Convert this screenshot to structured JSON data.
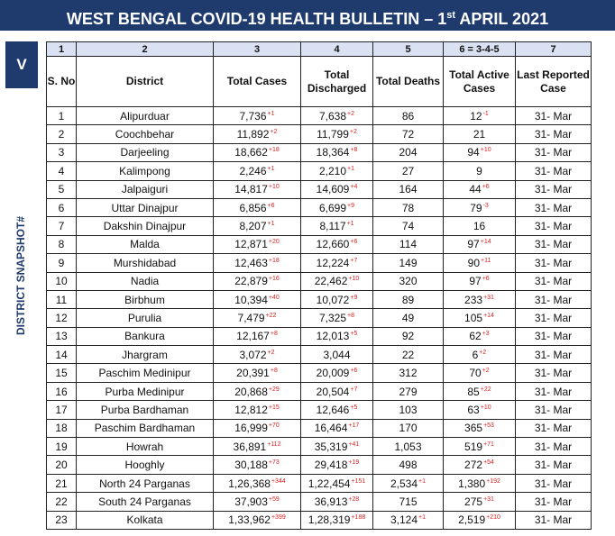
{
  "title": {
    "main": "WEST BENGAL COVID-19 HEALTH BULLETIN – 1",
    "ordinal": "st",
    "rest": " APRIL 2021"
  },
  "section": {
    "marker": "V",
    "label": "DISTRICT SNAPSHOT#"
  },
  "table": {
    "col_numbers": [
      "1",
      "2",
      "3",
      "4",
      "5",
      "6 = 3-4-5",
      "7"
    ],
    "headers": [
      "S. No",
      "District",
      "Total Cases",
      "Total Discharged",
      "Total Deaths",
      "Total Active Cases",
      "Last Reported Case"
    ],
    "rows": [
      {
        "sno": "1",
        "district": "Alipurduar",
        "cases": "7,736",
        "cases_delta": "+1",
        "discharged": "7,638",
        "discharged_delta": "+2",
        "deaths": "86",
        "deaths_delta": "",
        "active": "12",
        "active_delta": "-1",
        "last": "31- Mar"
      },
      {
        "sno": "2",
        "district": "Coochbehar",
        "cases": "11,892",
        "cases_delta": "+2",
        "discharged": "11,799",
        "discharged_delta": "+2",
        "deaths": "72",
        "deaths_delta": "",
        "active": "21",
        "active_delta": "",
        "last": "31- Mar"
      },
      {
        "sno": "3",
        "district": "Darjeeling",
        "cases": "18,662",
        "cases_delta": "+18",
        "discharged": "18,364",
        "discharged_delta": "+8",
        "deaths": "204",
        "deaths_delta": "",
        "active": "94",
        "active_delta": "+10",
        "last": "31- Mar"
      },
      {
        "sno": "4",
        "district": "Kalimpong",
        "cases": "2,246",
        "cases_delta": "+1",
        "discharged": "2,210",
        "discharged_delta": "+1",
        "deaths": "27",
        "deaths_delta": "",
        "active": "9",
        "active_delta": "",
        "last": "31- Mar"
      },
      {
        "sno": "5",
        "district": "Jalpaiguri",
        "cases": "14,817",
        "cases_delta": "+10",
        "discharged": "14,609",
        "discharged_delta": "+4",
        "deaths": "164",
        "deaths_delta": "",
        "active": "44",
        "active_delta": "+6",
        "last": "31- Mar"
      },
      {
        "sno": "6",
        "district": "Uttar Dinajpur",
        "cases": "6,856",
        "cases_delta": "+6",
        "discharged": "6,699",
        "discharged_delta": "+9",
        "deaths": "78",
        "deaths_delta": "",
        "active": "79",
        "active_delta": "-3",
        "last": "31- Mar"
      },
      {
        "sno": "7",
        "district": "Dakshin Dinajpur",
        "cases": "8,207",
        "cases_delta": "+1",
        "discharged": "8,117",
        "discharged_delta": "+1",
        "deaths": "74",
        "deaths_delta": "",
        "active": "16",
        "active_delta": "",
        "last": "31- Mar"
      },
      {
        "sno": "8",
        "district": "Malda",
        "cases": "12,871",
        "cases_delta": "+20",
        "discharged": "12,660",
        "discharged_delta": "+6",
        "deaths": "114",
        "deaths_delta": "",
        "active": "97",
        "active_delta": "+14",
        "last": "31- Mar"
      },
      {
        "sno": "9",
        "district": "Murshidabad",
        "cases": "12,463",
        "cases_delta": "+18",
        "discharged": "12,224",
        "discharged_delta": "+7",
        "deaths": "149",
        "deaths_delta": "",
        "active": "90",
        "active_delta": "+11",
        "last": "31- Mar"
      },
      {
        "sno": "10",
        "district": "Nadia",
        "cases": "22,879",
        "cases_delta": "+16",
        "discharged": "22,462",
        "discharged_delta": "+10",
        "deaths": "320",
        "deaths_delta": "",
        "active": "97",
        "active_delta": "+6",
        "last": "31- Mar"
      },
      {
        "sno": "11",
        "district": "Birbhum",
        "cases": "10,394",
        "cases_delta": "+40",
        "discharged": "10,072",
        "discharged_delta": "+9",
        "deaths": "89",
        "deaths_delta": "",
        "active": "233",
        "active_delta": "+31",
        "last": "31- Mar"
      },
      {
        "sno": "12",
        "district": "Purulia",
        "cases": "7,479",
        "cases_delta": "+22",
        "discharged": "7,325",
        "discharged_delta": "+8",
        "deaths": "49",
        "deaths_delta": "",
        "active": "105",
        "active_delta": "+14",
        "last": "31- Mar"
      },
      {
        "sno": "13",
        "district": "Bankura",
        "cases": "12,167",
        "cases_delta": "+8",
        "discharged": "12,013",
        "discharged_delta": "+5",
        "deaths": "92",
        "deaths_delta": "",
        "active": "62",
        "active_delta": "+3",
        "last": "31- Mar"
      },
      {
        "sno": "14",
        "district": "Jhargram",
        "cases": "3,072",
        "cases_delta": "+2",
        "discharged": "3,044",
        "discharged_delta": "",
        "deaths": "22",
        "deaths_delta": "",
        "active": "6",
        "active_delta": "+2",
        "last": "31- Mar"
      },
      {
        "sno": "15",
        "district": "Paschim Medinipur",
        "cases": "20,391",
        "cases_delta": "+8",
        "discharged": "20,009",
        "discharged_delta": "+6",
        "deaths": "312",
        "deaths_delta": "",
        "active": "70",
        "active_delta": "+2",
        "last": "31- Mar"
      },
      {
        "sno": "16",
        "district": "Purba Medinipur",
        "cases": "20,868",
        "cases_delta": "+29",
        "discharged": "20,504",
        "discharged_delta": "+7",
        "deaths": "279",
        "deaths_delta": "",
        "active": "85",
        "active_delta": "+22",
        "last": "31- Mar"
      },
      {
        "sno": "17",
        "district": "Purba Bardhaman",
        "cases": "12,812",
        "cases_delta": "+15",
        "discharged": "12,646",
        "discharged_delta": "+5",
        "deaths": "103",
        "deaths_delta": "",
        "active": "63",
        "active_delta": "+10",
        "last": "31- Mar"
      },
      {
        "sno": "18",
        "district": "Paschim Bardhaman",
        "cases": "16,999",
        "cases_delta": "+70",
        "discharged": "16,464",
        "discharged_delta": "+17",
        "deaths": "170",
        "deaths_delta": "",
        "active": "365",
        "active_delta": "+53",
        "last": "31- Mar"
      },
      {
        "sno": "19",
        "district": "Howrah",
        "cases": "36,891",
        "cases_delta": "+112",
        "discharged": "35,319",
        "discharged_delta": "+41",
        "deaths": "1,053",
        "deaths_delta": "",
        "active": "519",
        "active_delta": "+71",
        "last": "31- Mar"
      },
      {
        "sno": "20",
        "district": "Hooghly",
        "cases": "30,188",
        "cases_delta": "+73",
        "discharged": "29,418",
        "discharged_delta": "+19",
        "deaths": "498",
        "deaths_delta": "",
        "active": "272",
        "active_delta": "+54",
        "last": "31- Mar"
      },
      {
        "sno": "21",
        "district": "North 24 Parganas",
        "cases": "1,26,368",
        "cases_delta": "+344",
        "discharged": "1,22,454",
        "discharged_delta": "+151",
        "deaths": "2,534",
        "deaths_delta": "+1",
        "active": "1,380",
        "active_delta": "+192",
        "last": "31- Mar"
      },
      {
        "sno": "22",
        "district": "South 24 Parganas",
        "cases": "37,903",
        "cases_delta": "+59",
        "discharged": "36,913",
        "discharged_delta": "+28",
        "deaths": "715",
        "deaths_delta": "",
        "active": "275",
        "active_delta": "+31",
        "last": "31- Mar"
      },
      {
        "sno": "23",
        "district": "Kolkata",
        "cases": "1,33,962",
        "cases_delta": "+399",
        "discharged": "1,28,319",
        "discharged_delta": "+188",
        "deaths": "3,124",
        "deaths_delta": "+1",
        "active": "2,519",
        "active_delta": "+210",
        "last": "31- Mar"
      }
    ]
  }
}
